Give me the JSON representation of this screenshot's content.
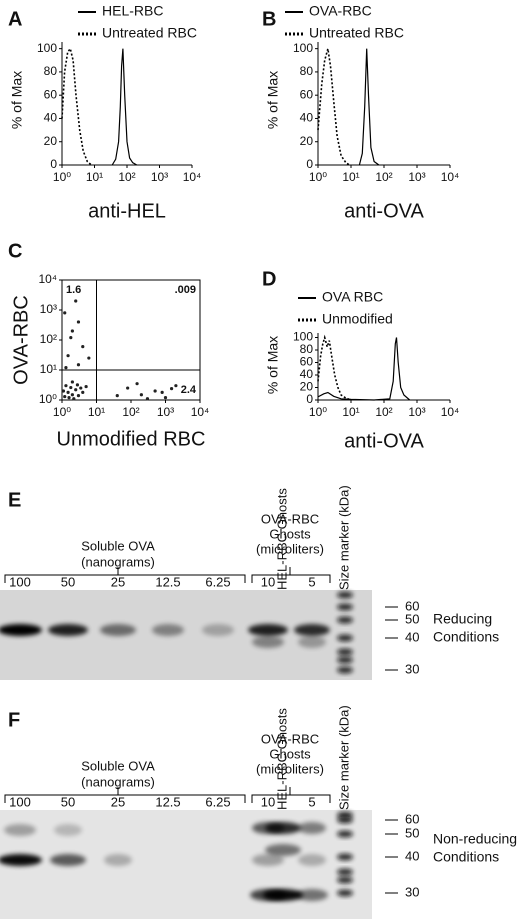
{
  "chart_data": [
    {
      "type": "line",
      "panel": "A",
      "log_x": true,
      "ylabel": "% of Max",
      "xlabel": "anti-HEL",
      "xlim": [
        1,
        10000
      ],
      "xticks": [
        {
          "value": 1,
          "label": "10⁰"
        },
        {
          "value": 10,
          "label": "10¹"
        },
        {
          "value": 100,
          "label": "10²"
        },
        {
          "value": 1000,
          "label": "10³"
        },
        {
          "value": 10000,
          "label": "10⁴"
        }
      ],
      "ylim": [
        0,
        104
      ],
      "yticks": [
        0,
        20,
        40,
        60,
        80,
        100
      ],
      "series": [
        {
          "name": "HEL-RBC",
          "color": "#000000",
          "dash": false,
          "x": [
            35,
            45,
            55,
            62,
            68,
            75,
            85,
            100,
            120,
            150,
            200
          ],
          "values": [
            0,
            5,
            20,
            50,
            85,
            100,
            60,
            20,
            6,
            2,
            0
          ]
        },
        {
          "name": "Untreated RBC",
          "color": "#000000",
          "dash": true,
          "x": [
            1,
            1.2,
            1.5,
            1.8,
            2.2,
            2.7,
            3.5,
            4.5,
            6,
            8
          ],
          "values": [
            40,
            80,
            97,
            100,
            90,
            60,
            30,
            12,
            3,
            0
          ]
        }
      ]
    },
    {
      "type": "line",
      "panel": "B",
      "log_x": true,
      "ylabel": "% of Max",
      "xlabel": "anti-OVA",
      "xlim": [
        1,
        10000
      ],
      "xticks": [
        {
          "value": 1,
          "label": "10⁰"
        },
        {
          "value": 10,
          "label": "10¹"
        },
        {
          "value": 100,
          "label": "10²"
        },
        {
          "value": 1000,
          "label": "10³"
        },
        {
          "value": 10000,
          "label": "10⁴"
        }
      ],
      "ylim": [
        0,
        104
      ],
      "yticks": [
        0,
        20,
        40,
        60,
        80,
        100
      ],
      "series": [
        {
          "name": "OVA-RBC",
          "color": "#000000",
          "dash": false,
          "x": [
            18,
            22,
            26,
            30,
            34,
            40,
            50,
            70
          ],
          "values": [
            0,
            10,
            50,
            100,
            60,
            15,
            3,
            0
          ]
        },
        {
          "name": "Untreated RBC",
          "color": "#000000",
          "dash": true,
          "x": [
            1,
            1.3,
            1.6,
            2,
            2.4,
            3,
            3.8,
            5,
            7,
            9
          ],
          "values": [
            30,
            70,
            90,
            100,
            85,
            55,
            25,
            8,
            2,
            0
          ]
        }
      ]
    },
    {
      "type": "scatter",
      "panel": "C",
      "log_x": true,
      "log_y": true,
      "ylabel": "OVA-RBC",
      "xlabel": "Unmodified RBC",
      "xlim": [
        1,
        10000
      ],
      "xticks": [
        {
          "value": 1,
          "label": "10⁰"
        },
        {
          "value": 10,
          "label": "10¹"
        },
        {
          "value": 100,
          "label": "10²"
        },
        {
          "value": 1000,
          "label": "10³"
        },
        {
          "value": 10000,
          "label": "10⁴"
        }
      ],
      "ylim": [
        1,
        10000
      ],
      "yticks": [
        {
          "value": 1,
          "label": "10⁰"
        },
        {
          "value": 10,
          "label": "10¹"
        },
        {
          "value": 100,
          "label": "10²"
        },
        {
          "value": 1000,
          "label": "10³"
        },
        {
          "value": 10000,
          "label": "10⁴"
        }
      ],
      "quadrant_x": 10,
      "quadrant_y": 10,
      "annotations": [
        "1.6",
        ".009",
        "2.4"
      ],
      "series": [
        {
          "color": "#222222",
          "x": [
            1.2,
            1.5,
            2,
            2.5,
            1.8,
            3,
            1.3,
            2.2,
            3.5,
            1.6,
            2.8,
            4,
            1.1,
            5,
            2,
            1.5,
            2,
            3,
            1.2,
            4,
            2.5,
            1.8,
            6,
            3,
            1.3,
            200,
            500,
            1000,
            80,
            2000,
            300,
            150,
            800,
            40,
            1500
          ],
          "values": [
            1.3,
            1.8,
            1.5,
            2.2,
            2.6,
            1.4,
            3,
            1.1,
            2.5,
            1.2,
            3.2,
            1.8,
            2,
            2.8,
            4,
            30,
            200,
            15,
            800,
            60,
            2000,
            120,
            25,
            400,
            12,
            1.5,
            2,
            1.2,
            2.5,
            3,
            1.1,
            3.5,
            1.8,
            1.4,
            2.4
          ]
        }
      ]
    },
    {
      "type": "line",
      "panel": "D",
      "log_x": true,
      "ylabel": "% of Max",
      "xlabel": "anti-OVA",
      "xlim": [
        1,
        10000
      ],
      "xticks": [
        {
          "value": 1,
          "label": "10⁰"
        },
        {
          "value": 10,
          "label": "10¹"
        },
        {
          "value": 100,
          "label": "10²"
        },
        {
          "value": 1000,
          "label": "10³"
        },
        {
          "value": 10000,
          "label": "10⁴"
        }
      ],
      "ylim": [
        0,
        104
      ],
      "yticks": [
        0,
        20,
        40,
        60,
        80,
        100
      ],
      "series": [
        {
          "name": "OVA RBC",
          "color": "#000000",
          "dash": false,
          "x": [
            1,
            1.5,
            2,
            3,
            5,
            10,
            50,
            150,
            190,
            220,
            240,
            270,
            320,
            400,
            600
          ],
          "values": [
            5,
            10,
            12,
            6,
            2,
            1,
            0,
            2,
            30,
            90,
            100,
            60,
            20,
            8,
            0
          ]
        },
        {
          "name": "Unmodified",
          "color": "#000000",
          "dash": true,
          "x": [
            1,
            1.2,
            1.4,
            1.6,
            1.9,
            2.2,
            2.6,
            3.2,
            4,
            5,
            7,
            10
          ],
          "values": [
            30,
            70,
            90,
            100,
            85,
            95,
            70,
            40,
            20,
            8,
            3,
            0
          ]
        }
      ]
    }
  ],
  "blots": [
    {
      "panel": "E",
      "soluble_title": [
        "Soluble OVA",
        "(nanograms)"
      ],
      "soluble_lanes": [
        100,
        50,
        25,
        12.5,
        6.25
      ],
      "hel_title": "HEL-RBC Ghosts",
      "ova_title": [
        "OVA-RBC",
        "Ghosts",
        "(microliters)"
      ],
      "ova_lanes": [
        10,
        5
      ],
      "marker_title": "Size marker (kDa)",
      "markers": [
        60,
        50,
        40,
        30
      ],
      "condition": [
        "Reducing",
        "Conditions"
      ]
    },
    {
      "panel": "F",
      "soluble_title": [
        "Soluble OVA",
        "(nanograms)"
      ],
      "soluble_lanes": [
        100,
        50,
        25,
        12.5,
        6.25
      ],
      "hel_title": "HEL-RBC Ghosts",
      "ova_title": [
        "OVA-RBC",
        "Ghosts",
        "(microliters)"
      ],
      "ova_lanes": [
        10,
        5
      ],
      "marker_title": "Size marker (kDa)",
      "markers": [
        60,
        50,
        40,
        30
      ],
      "condition": [
        "Non-reducing",
        "Conditions"
      ]
    }
  ]
}
